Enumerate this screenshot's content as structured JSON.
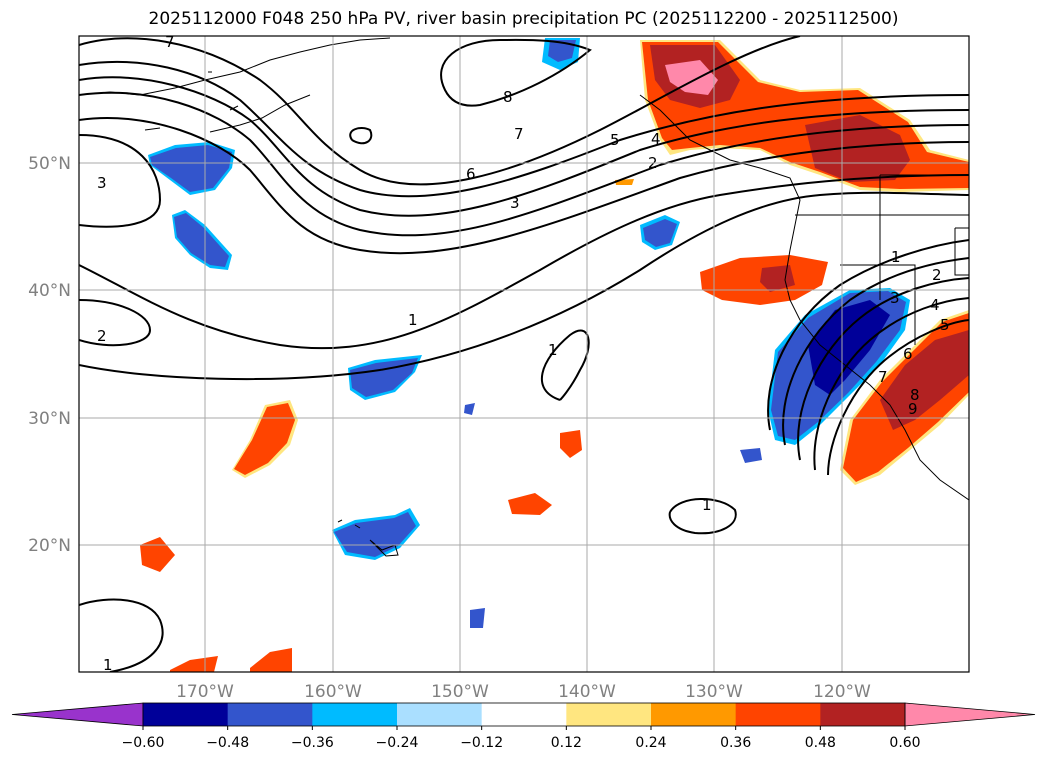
{
  "title": "2025112000 F048 250 hPa PV, river basin precipitation PC (2025112200 - 2025112500)",
  "map": {
    "lon_labels": [
      "170°W",
      "160°W",
      "150°W",
      "140°W",
      "130°W",
      "120°W"
    ],
    "lat_labels": [
      "50°N",
      "40°N",
      "30°N",
      "20°N"
    ]
  },
  "contour_labels": [
    "7",
    "8",
    "7",
    "6",
    "5",
    "4",
    "3",
    "2",
    "1",
    "3",
    "2",
    "1",
    "1",
    "1",
    "1",
    "2",
    "3",
    "4",
    "5",
    "6",
    "7",
    "8",
    "9"
  ],
  "colorbar": {
    "colors": [
      "#9933cc",
      "#000099",
      "#3355cc",
      "#00bbff",
      "#aadfff",
      "#ffffff",
      "#ffe680",
      "#ff9900",
      "#ff4400",
      "#b22222",
      "#ff88aa"
    ],
    "ticks": [
      "−0.60",
      "−0.48",
      "−0.36",
      "−0.24",
      "−0.12",
      "0.12",
      "0.24",
      "0.36",
      "0.48",
      "0.60"
    ]
  }
}
